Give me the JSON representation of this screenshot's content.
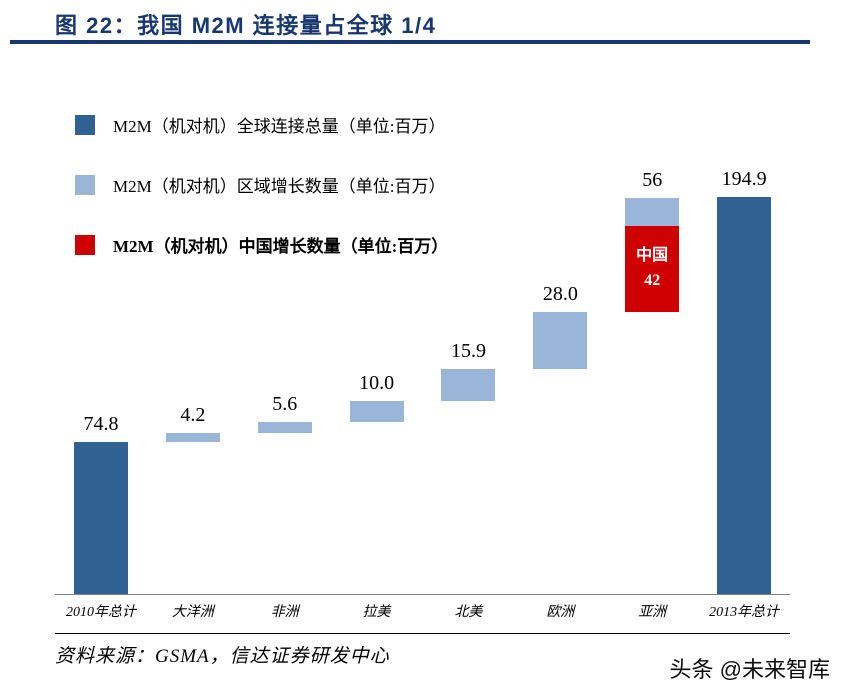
{
  "header": {
    "title": "图 22：我国 M2M 连接量占全球 1/4"
  },
  "legend": [
    {
      "label": "M2M（机对机）全球连接总量（单位:百万）",
      "color": "#2F6293",
      "bold": false
    },
    {
      "label": "M2M（机对机）区域增长数量（单位:百万）",
      "color": "#99B5D8",
      "bold": false
    },
    {
      "label": "M2M（机对机）中国增长数量（单位:百万）",
      "color": "#CE0000",
      "bold": true
    }
  ],
  "chart_data": {
    "type": "bar",
    "subtype": "waterfall",
    "title": "我国 M2M 连接量占全球 1/4",
    "unit": "百万",
    "ylim": [
      0,
      213
    ],
    "grid": false,
    "legend_position": "top-left",
    "colors": {
      "total": "#2F6293",
      "region": "#99B5D8",
      "china": "#CE0000"
    },
    "categories": [
      "2010年总计",
      "大洋洲",
      "非洲",
      "拉美",
      "北美",
      "欧洲",
      "亚洲",
      "2013年总计"
    ],
    "bars": [
      {
        "category": "2010年总计",
        "label": "74.8",
        "value": 74.8,
        "start": 0,
        "end": 74.8,
        "kind": "total"
      },
      {
        "category": "大洋洲",
        "label": "4.2",
        "value": 4.2,
        "start": 74.8,
        "end": 79.0,
        "kind": "region"
      },
      {
        "category": "非洲",
        "label": "5.6",
        "value": 5.6,
        "start": 79.0,
        "end": 84.6,
        "kind": "region"
      },
      {
        "category": "拉美",
        "label": "10.0",
        "value": 10.0,
        "start": 84.6,
        "end": 94.6,
        "kind": "region"
      },
      {
        "category": "北美",
        "label": "15.9",
        "value": 15.9,
        "start": 94.6,
        "end": 110.5,
        "kind": "region"
      },
      {
        "category": "欧洲",
        "label": "28.0",
        "value": 28.0,
        "start": 110.5,
        "end": 138.5,
        "kind": "region"
      },
      {
        "category": "亚洲",
        "label": "56",
        "value": 56,
        "start": 138.5,
        "end": 194.5,
        "kind": "region",
        "china": {
          "label": "中国",
          "value_label": "42",
          "value": 42
        }
      },
      {
        "category": "2013年总计",
        "label": "194.9",
        "value": 194.9,
        "start": 0,
        "end": 194.9,
        "kind": "total"
      }
    ]
  },
  "footer": {
    "source": "资料来源：GSMA，信达证券研发中心",
    "watermark": "头条 @未来智库"
  }
}
